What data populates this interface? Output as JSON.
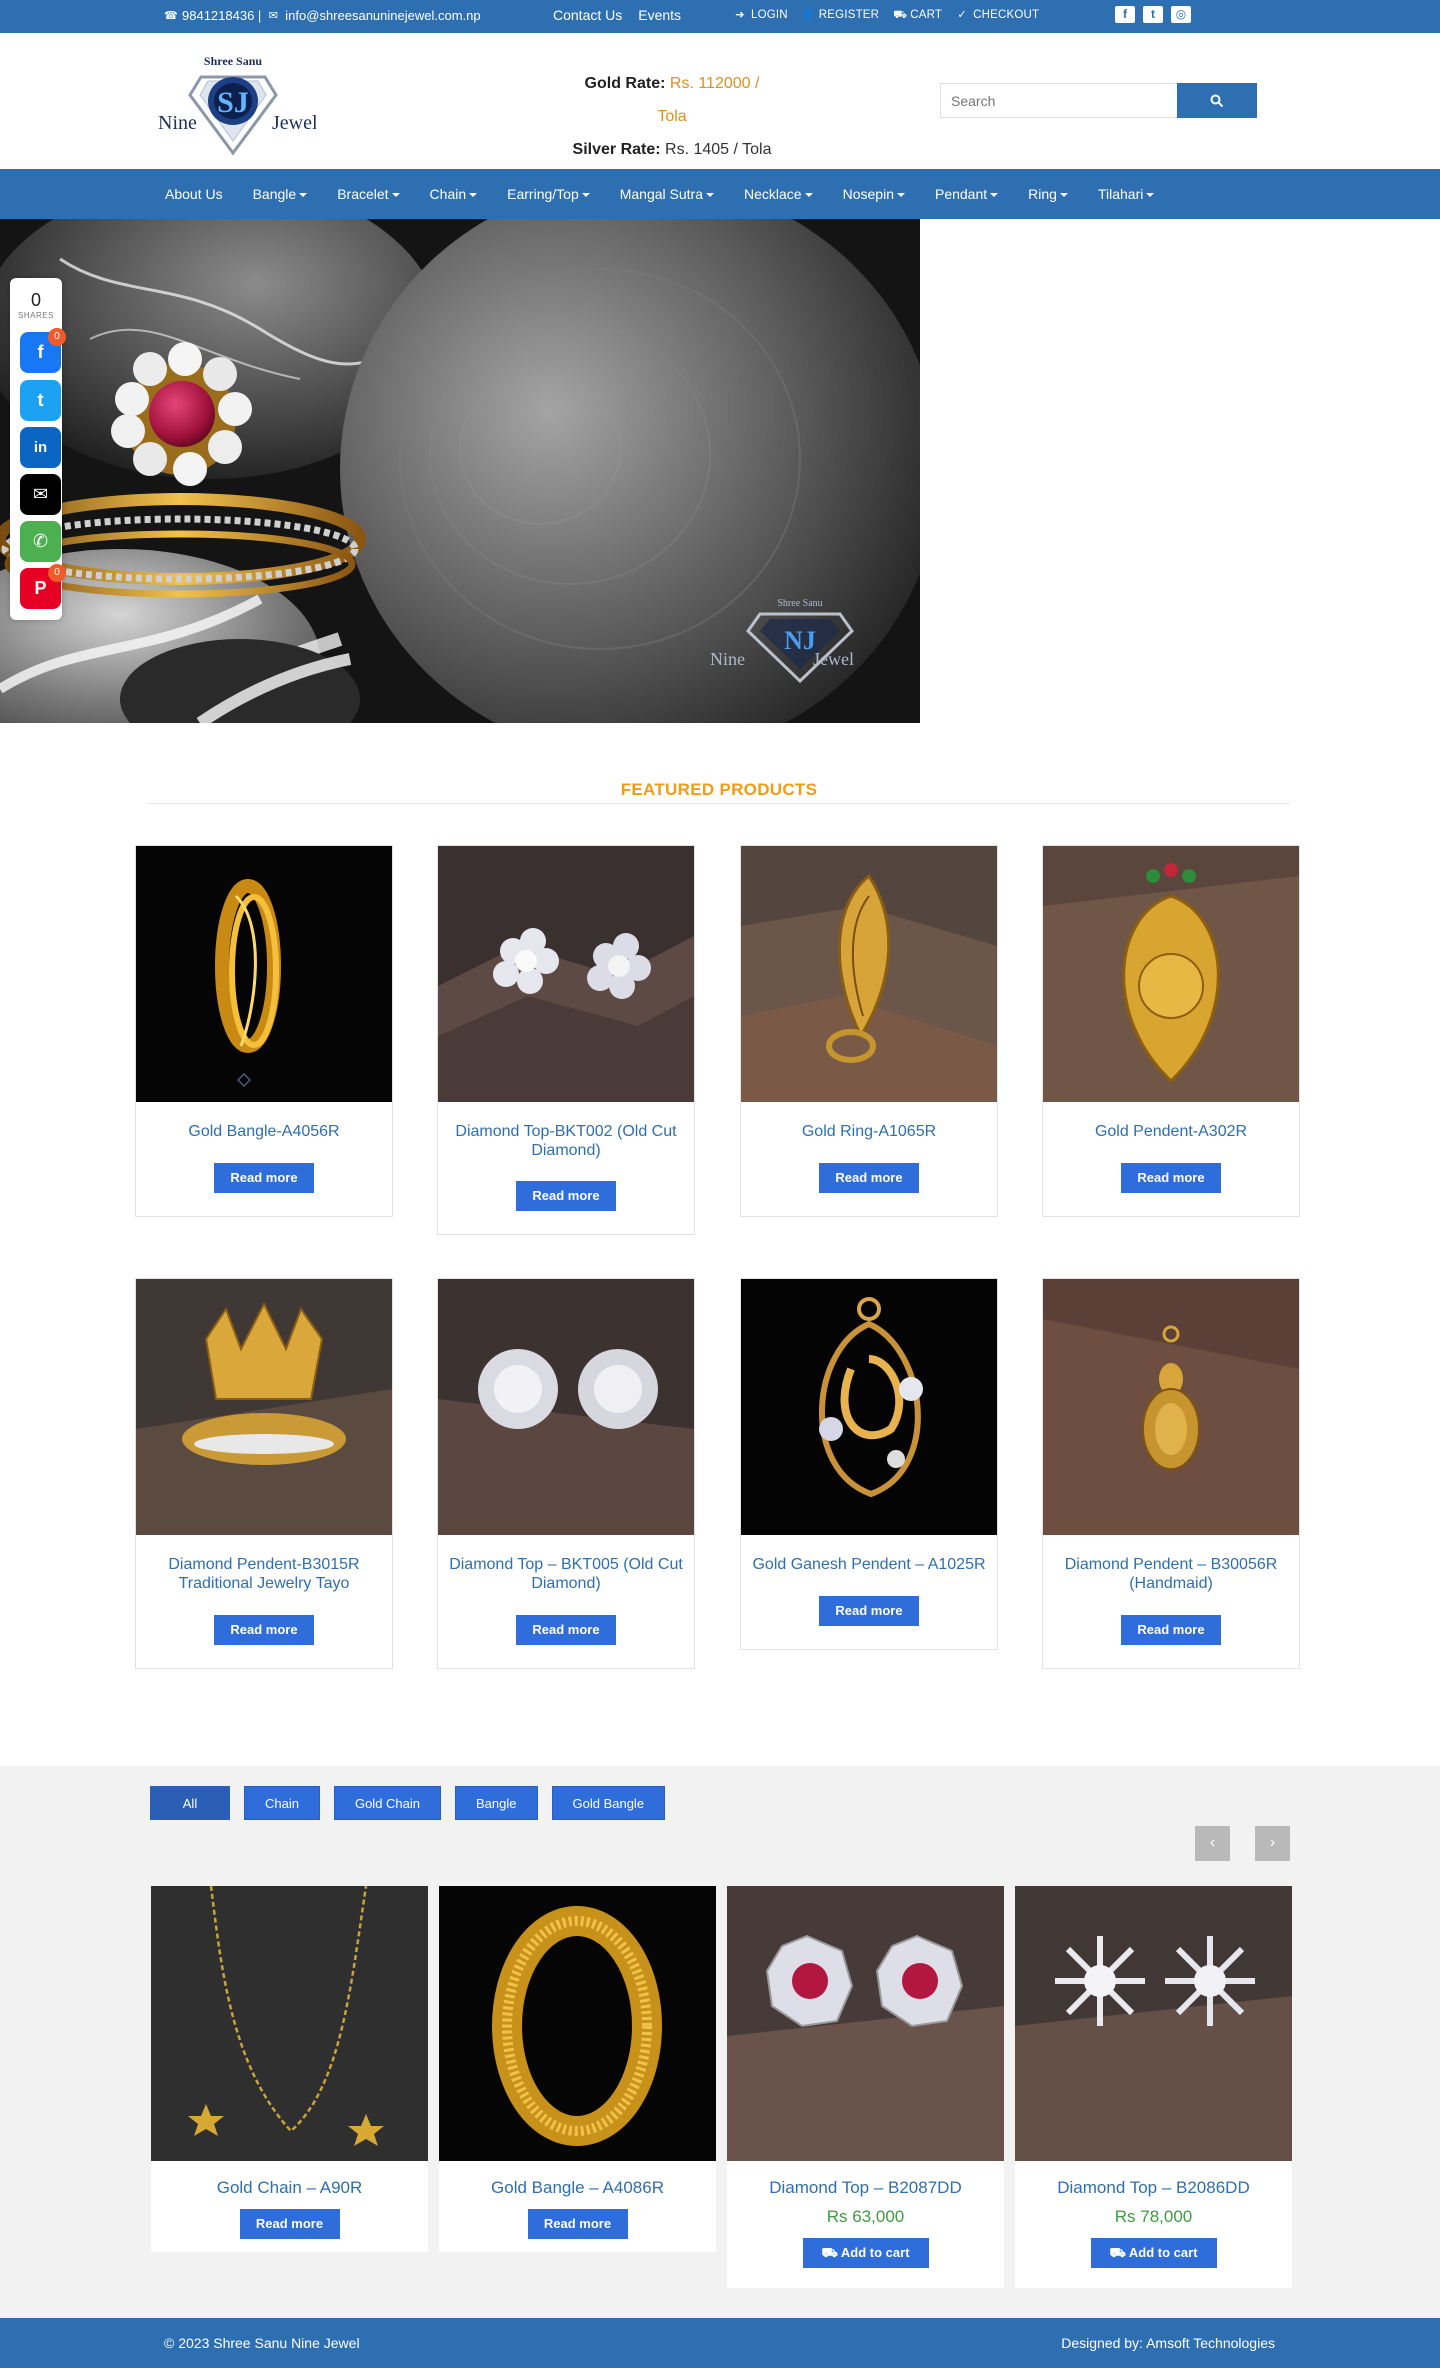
{
  "topbar": {
    "phone": "9841218436 |",
    "email": "info@shreesanuninejewel.com.np",
    "links": [
      "Contact Us",
      "Events"
    ],
    "account": [
      "LOGIN",
      "REGISTER",
      "CART",
      "CHECKOUT"
    ]
  },
  "header": {
    "logo_top": "Shree Sanu",
    "logo_left": "Nine",
    "logo_right": "Jewel",
    "logo_mark": "SJ",
    "gold_label": "Gold Rate:",
    "gold_value": "Rs. 112000 / Tola",
    "silver_label": "Silver Rate:",
    "silver_value": "Rs. 1405 / Tola",
    "search_placeholder": "Search"
  },
  "nav": [
    {
      "label": "About Us",
      "dropdown": false
    },
    {
      "label": "Bangle",
      "dropdown": true
    },
    {
      "label": "Bracelet",
      "dropdown": true
    },
    {
      "label": "Chain",
      "dropdown": true
    },
    {
      "label": "Earring/Top",
      "dropdown": true
    },
    {
      "label": "Mangal Sutra",
      "dropdown": true
    },
    {
      "label": "Necklace",
      "dropdown": true
    },
    {
      "label": "Nosepin",
      "dropdown": true
    },
    {
      "label": "Pendant",
      "dropdown": true
    },
    {
      "label": "Ring",
      "dropdown": true
    },
    {
      "label": "Tilahari",
      "dropdown": true
    }
  ],
  "hero": {
    "watermark_top": "Shree Sanu",
    "watermark_left": "Nine",
    "watermark_right": "Jewel",
    "watermark_mark": "NJ"
  },
  "share": {
    "count": "0",
    "label": "SHARES",
    "facebook_badge": "0",
    "pinterest_badge": "0"
  },
  "featured": {
    "title": "FEATURED PRODUCTS",
    "read_more": "Read more",
    "products": [
      {
        "name": "Gold Bangle-A4056R"
      },
      {
        "name": "Diamond Top-BKT002 (Old Cut Diamond)"
      },
      {
        "name": "Gold Ring-A1065R"
      },
      {
        "name": "Gold Pendent-A302R"
      },
      {
        "name": "Diamond Pendent-B3015R Traditional Jewelry Tayo"
      },
      {
        "name": "Diamond Top – BKT005 (Old Cut Diamond)"
      },
      {
        "name": "Gold Ganesh Pendent – A1025R"
      },
      {
        "name": "Diamond Pendent – B30056R (Handmaid)"
      }
    ]
  },
  "filters": [
    "All",
    "Chain",
    "Gold Chain",
    "Bangle",
    "Gold Bangle"
  ],
  "carousel": {
    "prev": "‹",
    "next": "›",
    "read_more": "Read more",
    "add_to_cart": "Add to cart",
    "items": [
      {
        "name": "Gold Chain – A90R"
      },
      {
        "name": "Gold Bangle – A4086R"
      },
      {
        "name": "Diamond Top – B2087DD",
        "price": "Rs 63,000"
      },
      {
        "name": "Diamond Top – B2086DD",
        "price": "Rs 78,000"
      }
    ]
  },
  "footer": {
    "copyright": "© 2023 Shree Sanu Nine Jewel",
    "designed": "Designed by: Amsoft Technologies"
  },
  "colors": {
    "primary": "#2d6fb0",
    "accent": "#f39c12",
    "button": "#2e6dda",
    "price": "#3f9b3f"
  }
}
